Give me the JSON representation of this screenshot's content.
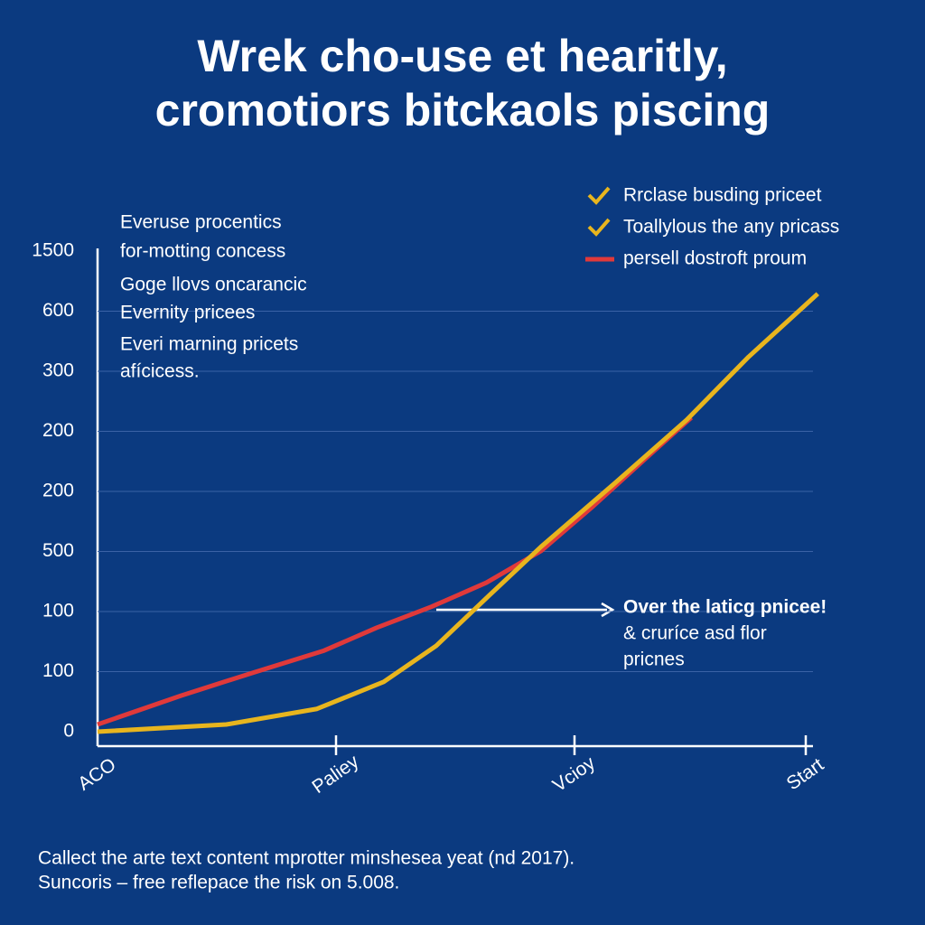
{
  "chart_data": {
    "type": "line",
    "title": [
      "Wrek cho-use et hearitly,",
      "cromotiors bitckaols piscing"
    ],
    "notes": [
      "Everuse procentics",
      "for-motting concess",
      "Goge llovs oncarancic",
      "Evernity pricees",
      "Everi marning pricets",
      "afícicess."
    ],
    "y_categories": [
      "0",
      "100",
      "100",
      "500",
      "200",
      "200",
      "300",
      "600",
      "1500"
    ],
    "categories": [
      "ACO",
      "Paliey",
      "Vcioy",
      "Start"
    ],
    "grid": true,
    "series": [
      {
        "name": "Rrclase busding priceet",
        "color": "#e8b51e",
        "x": [
          0,
          0.54,
          0.92,
          1.2,
          1.42,
          1.64,
          1.86,
          2.17,
          2.47,
          2.73,
          3.02
        ],
        "values": [
          0,
          0.12,
          0.38,
          0.83,
          1.43,
          2.26,
          3.08,
          4.14,
          5.19,
          6.24,
          7.29
        ]
      },
      {
        "name": "persell dostroft proum",
        "color": "#e0393a",
        "x": [
          0,
          0.35,
          0.65,
          0.95,
          1.17,
          1.4,
          1.63,
          1.86,
          2.08,
          2.31,
          2.49
        ],
        "values": [
          0.12,
          0.6,
          0.98,
          1.35,
          1.73,
          2.08,
          2.48,
          3.01,
          3.76,
          4.59,
          5.23
        ]
      }
    ],
    "legend_extra": "Toallylous the any pricass",
    "annotation": [
      "Over the laticg pnicee!",
      "& cruríce asd flor",
      "pricnes"
    ],
    "footer": [
      "Callect the arte text content mprotter minshesea yeat (nd 2017).",
      "Suncoris – free reflepace the risk on 5.008."
    ]
  }
}
